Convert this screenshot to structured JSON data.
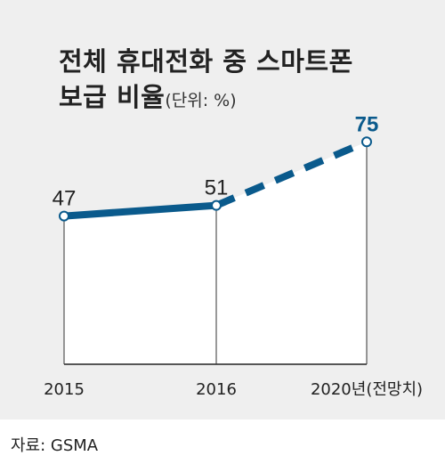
{
  "title_line1": "전체 휴대전화 중 스마트폰",
  "title_line2": "보급 비율",
  "unit": "(단위: %)",
  "source": "자료: GSMA",
  "colors": {
    "background": "#efefef",
    "plot_area": "#ffffff",
    "line": "#0a5a8c",
    "highlight_label": "#0a5a8c",
    "text": "#222222"
  },
  "chart_data": {
    "type": "line",
    "categories": [
      "2015",
      "2016",
      "2020년(전망치)"
    ],
    "values": [
      47,
      51,
      75
    ],
    "value_labels": [
      "47",
      "51",
      "75"
    ],
    "projected_from_index": 1,
    "title": "전체 휴대전화 중 스마트폰 보급 비율",
    "unit": "(단위: %)"
  }
}
